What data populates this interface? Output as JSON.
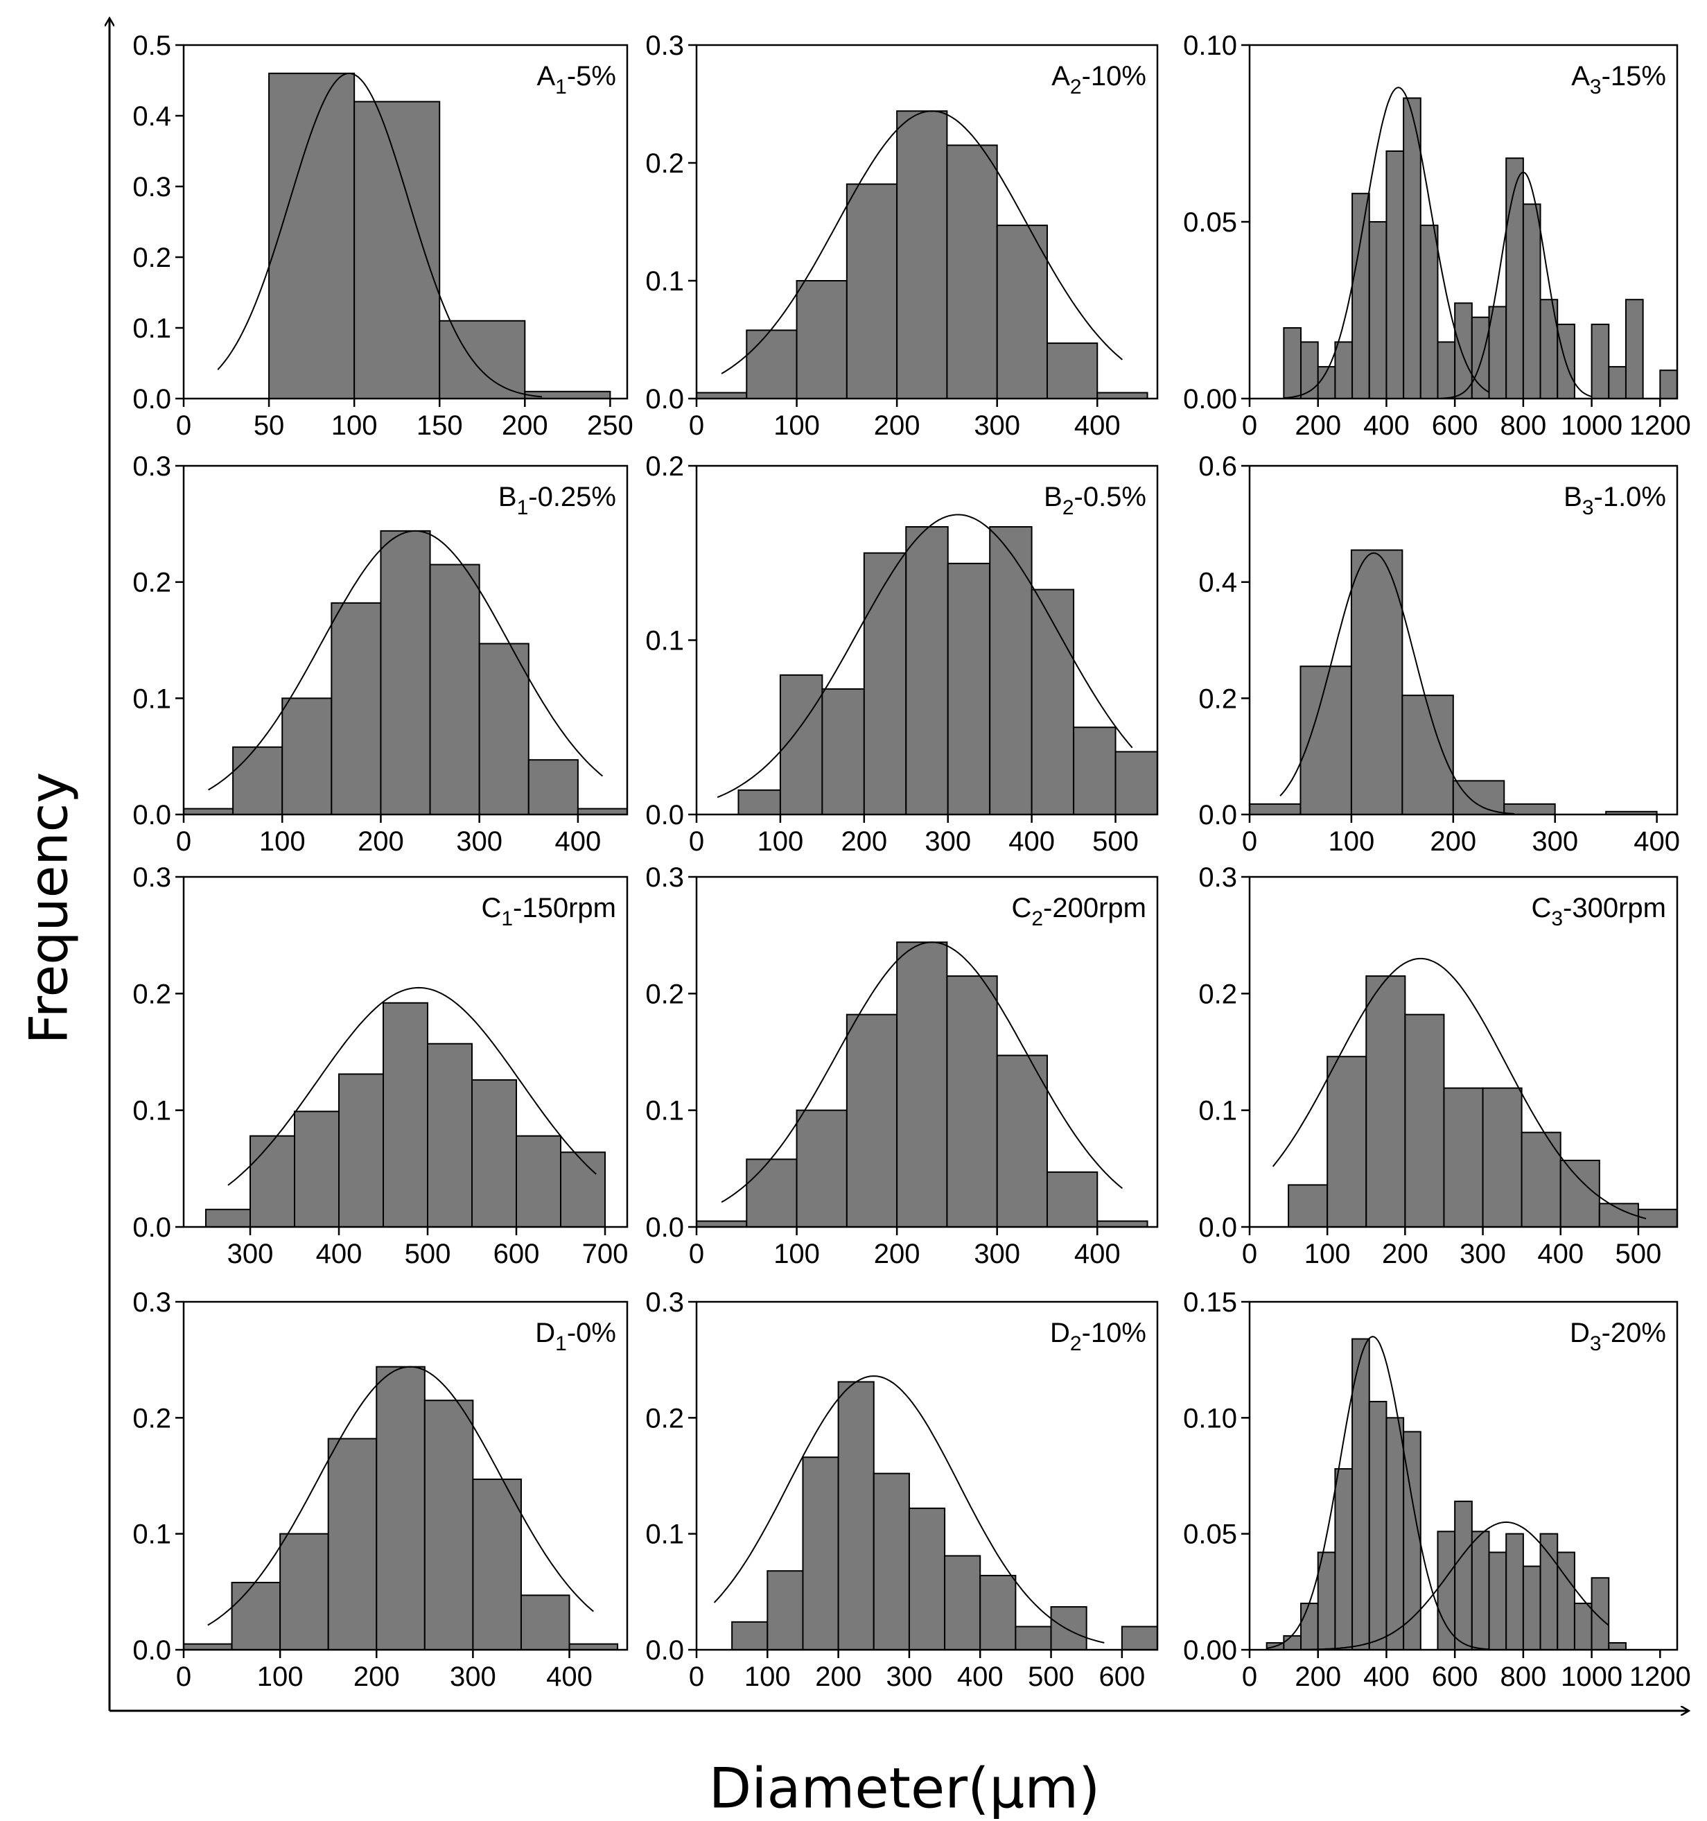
{
  "figure": {
    "ylabel": "Frequency",
    "xlabel": "Diameter(μm)"
  },
  "style": {
    "bar_fill": "#7a7a7a",
    "bar_stroke": "#000000",
    "axis_color": "#000000",
    "curve_color": "#000000"
  },
  "chart_data": [
    {
      "type": "bar",
      "panel": "A1",
      "label_main": "A",
      "label_sub": "1",
      "label_rest": "-5%",
      "xlim": [
        0,
        260
      ],
      "xticks": [
        0,
        50,
        100,
        150,
        200,
        250
      ],
      "ylim": [
        0,
        0.5
      ],
      "yticks": [
        "0.0",
        "0.1",
        "0.2",
        "0.3",
        "0.4",
        "0.5"
      ],
      "bin_edges": [
        50,
        100,
        150,
        200,
        250
      ],
      "values": [
        0.46,
        0.42,
        0.11,
        0.01
      ],
      "curves": [
        {
          "mu": 97,
          "sigma": 35,
          "amp": 0.46,
          "from": 20,
          "to": 210
        }
      ]
    },
    {
      "type": "bar",
      "panel": "A2",
      "label_main": "A",
      "label_sub": "2",
      "label_rest": "-10%",
      "xlim": [
        0,
        460
      ],
      "xticks": [
        0,
        100,
        200,
        300,
        400
      ],
      "ylim": [
        0,
        0.3
      ],
      "yticks": [
        "0.0",
        "0.1",
        "0.2",
        "0.3"
      ],
      "bin_edges": [
        0,
        50,
        100,
        150,
        200,
        250,
        300,
        350,
        400,
        450
      ],
      "values": [
        0.005,
        0.058,
        0.1,
        0.182,
        0.244,
        0.215,
        0.147,
        0.047,
        0.005
      ],
      "curves": [
        {
          "mu": 235,
          "sigma": 95,
          "amp": 0.244,
          "from": 25,
          "to": 425
        }
      ]
    },
    {
      "type": "bar",
      "panel": "A3",
      "label_main": "A",
      "label_sub": "3",
      "label_rest": "-15%",
      "xlim": [
        0,
        1250
      ],
      "xticks": [
        0,
        200,
        400,
        600,
        800,
        1000,
        1200
      ],
      "ylim": [
        0,
        0.1
      ],
      "yticks": [
        "0.00",
        "0.05",
        "0.10"
      ],
      "bin_edges": [
        100,
        150,
        200,
        250,
        300,
        350,
        400,
        450,
        500,
        550,
        600,
        650,
        700,
        750,
        800,
        850,
        900,
        950,
        1000,
        1050,
        1100,
        1150,
        1200,
        1250
      ],
      "values": [
        0.02,
        0.016,
        0.009,
        0.016,
        0.058,
        0.05,
        0.07,
        0.085,
        0.049,
        0.016,
        0.027,
        0.023,
        0.026,
        0.068,
        0.055,
        0.028,
        0.021,
        0.0,
        0.021,
        0.009,
        0.028,
        0.0,
        0.008
      ],
      "curves": [
        {
          "mu": 435,
          "sigma": 95,
          "amp": 0.088,
          "from": 100,
          "to": 700
        },
        {
          "mu": 800,
          "sigma": 65,
          "amp": 0.064,
          "from": 560,
          "to": 1000
        }
      ]
    },
    {
      "type": "bar",
      "panel": "B1",
      "label_main": "B",
      "label_sub": "1",
      "label_rest": "-0.25%",
      "xlim": [
        0,
        450
      ],
      "xticks": [
        0,
        100,
        200,
        300,
        400
      ],
      "ylim": [
        0,
        0.3
      ],
      "yticks": [
        "0.0",
        "0.1",
        "0.2",
        "0.3"
      ],
      "bin_edges": [
        0,
        50,
        100,
        150,
        200,
        250,
        300,
        350,
        400,
        450
      ],
      "values": [
        0.005,
        0.058,
        0.1,
        0.182,
        0.244,
        0.215,
        0.147,
        0.047,
        0.005
      ],
      "curves": [
        {
          "mu": 235,
          "sigma": 95,
          "amp": 0.244,
          "from": 25,
          "to": 425
        }
      ]
    },
    {
      "type": "bar",
      "panel": "B2",
      "label_main": "B",
      "label_sub": "2",
      "label_rest": "-0.5%",
      "xlim": [
        0,
        550
      ],
      "xticks": [
        0,
        100,
        200,
        300,
        400,
        500
      ],
      "ylim": [
        0,
        0.2
      ],
      "yticks": [
        "0.0",
        "0.1",
        "0.2"
      ],
      "bin_edges": [
        50,
        100,
        150,
        200,
        250,
        300,
        350,
        400,
        450,
        500,
        550
      ],
      "values": [
        0.014,
        0.08,
        0.072,
        0.15,
        0.165,
        0.144,
        0.165,
        0.129,
        0.05,
        0.036
      ],
      "curves": [
        {
          "mu": 312,
          "sigma": 120,
          "amp": 0.172,
          "from": 25,
          "to": 520
        }
      ]
    },
    {
      "type": "bar",
      "panel": "B3",
      "label_main": "B",
      "label_sub": "3",
      "label_rest": "-1.0%",
      "xlim": [
        0,
        420
      ],
      "xticks": [
        0,
        100,
        200,
        300,
        400
      ],
      "ylim": [
        0,
        0.6
      ],
      "yticks": [
        "0.0",
        "0.2",
        "0.4",
        "0.6"
      ],
      "bin_edges": [
        0,
        50,
        100,
        150,
        200,
        250,
        300,
        350,
        400
      ],
      "values": [
        0.018,
        0.255,
        0.455,
        0.205,
        0.058,
        0.018,
        0.0,
        0.005
      ],
      "curves": [
        {
          "mu": 122,
          "sigma": 40,
          "amp": 0.45,
          "from": 30,
          "to": 260
        }
      ]
    },
    {
      "type": "bar",
      "panel": "C1",
      "label_main": "C",
      "label_sub": "1",
      "label_rest": "-150rpm",
      "xlim": [
        225,
        725
      ],
      "xticks": [
        300,
        400,
        500,
        600,
        700
      ],
      "ylim": [
        0,
        0.3
      ],
      "yticks": [
        "0.0",
        "0.1",
        "0.2",
        "0.3"
      ],
      "bin_edges": [
        250,
        300,
        350,
        400,
        450,
        500,
        550,
        600,
        650,
        700
      ],
      "values": [
        0.015,
        0.078,
        0.099,
        0.131,
        0.192,
        0.157,
        0.126,
        0.078,
        0.064
      ],
      "curves": [
        {
          "mu": 490,
          "sigma": 115,
          "amp": 0.205,
          "from": 275,
          "to": 690
        }
      ]
    },
    {
      "type": "bar",
      "panel": "C2",
      "label_main": "C",
      "label_sub": "2",
      "label_rest": "-200rpm",
      "xlim": [
        0,
        460
      ],
      "xticks": [
        0,
        100,
        200,
        300,
        400
      ],
      "ylim": [
        0,
        0.3
      ],
      "yticks": [
        "0.0",
        "0.1",
        "0.2",
        "0.3"
      ],
      "bin_edges": [
        0,
        50,
        100,
        150,
        200,
        250,
        300,
        350,
        400,
        450
      ],
      "values": [
        0.005,
        0.058,
        0.1,
        0.182,
        0.244,
        0.215,
        0.147,
        0.047,
        0.005
      ],
      "curves": [
        {
          "mu": 235,
          "sigma": 95,
          "amp": 0.244,
          "from": 25,
          "to": 425
        }
      ]
    },
    {
      "type": "bar",
      "panel": "C3",
      "label_main": "C",
      "label_sub": "3",
      "label_rest": "-300rpm",
      "xlim": [
        0,
        550
      ],
      "xticks": [
        0,
        100,
        200,
        300,
        400,
        500
      ],
      "ylim": [
        0,
        0.3
      ],
      "yticks": [
        "0.0",
        "0.1",
        "0.2",
        "0.3"
      ],
      "bin_edges": [
        50,
        100,
        150,
        200,
        250,
        300,
        350,
        400,
        450,
        500,
        550
      ],
      "values": [
        0.036,
        0.146,
        0.215,
        0.182,
        0.119,
        0.119,
        0.081,
        0.057,
        0.02,
        0.015
      ],
      "curves": [
        {
          "mu": 220,
          "sigma": 110,
          "amp": 0.23,
          "from": 30,
          "to": 510
        }
      ]
    },
    {
      "type": "bar",
      "panel": "D1",
      "label_main": "D",
      "label_sub": "1",
      "label_rest": "-0%",
      "xlim": [
        0,
        460
      ],
      "xticks": [
        0,
        100,
        200,
        300,
        400
      ],
      "ylim": [
        0,
        0.3
      ],
      "yticks": [
        "0.0",
        "0.1",
        "0.2",
        "0.3"
      ],
      "bin_edges": [
        0,
        50,
        100,
        150,
        200,
        250,
        300,
        350,
        400,
        450
      ],
      "values": [
        0.005,
        0.058,
        0.1,
        0.182,
        0.244,
        0.215,
        0.147,
        0.047,
        0.005
      ],
      "curves": [
        {
          "mu": 235,
          "sigma": 95,
          "amp": 0.244,
          "from": 25,
          "to": 425
        }
      ]
    },
    {
      "type": "bar",
      "panel": "D2",
      "label_main": "D",
      "label_sub": "2",
      "label_rest": "-10%",
      "xlim": [
        0,
        650
      ],
      "xticks": [
        0,
        100,
        200,
        300,
        400,
        500,
        600
      ],
      "ylim": [
        0,
        0.3
      ],
      "yticks": [
        "0.0",
        "0.1",
        "0.2",
        "0.3"
      ],
      "bin_edges": [
        50,
        100,
        150,
        200,
        250,
        300,
        350,
        400,
        450,
        500,
        550,
        600,
        650
      ],
      "values": [
        0.024,
        0.068,
        0.166,
        0.231,
        0.152,
        0.122,
        0.081,
        0.064,
        0.02,
        0.037,
        0.0,
        0.02
      ],
      "curves": [
        {
          "mu": 250,
          "sigma": 120,
          "amp": 0.236,
          "from": 25,
          "to": 575
        }
      ]
    },
    {
      "type": "bar",
      "panel": "D3",
      "label_main": "D",
      "label_sub": "3",
      "label_rest": "-20%",
      "xlim": [
        0,
        1250
      ],
      "xticks": [
        0,
        200,
        400,
        600,
        800,
        1000,
        1200
      ],
      "ylim": [
        0,
        0.15
      ],
      "yticks": [
        "0.00",
        "0.05",
        "0.10",
        "0.15"
      ],
      "bin_edges": [
        50,
        100,
        150,
        200,
        250,
        300,
        350,
        400,
        450,
        500,
        550,
        600,
        650,
        700,
        750,
        800,
        850,
        900,
        950,
        1000,
        1050,
        1100
      ],
      "values": [
        0.003,
        0.006,
        0.02,
        0.042,
        0.078,
        0.134,
        0.107,
        0.1,
        0.094,
        0.0,
        0.051,
        0.064,
        0.051,
        0.042,
        0.05,
        0.036,
        0.05,
        0.042,
        0.02,
        0.031,
        0.003
      ],
      "curves": [
        {
          "mu": 360,
          "sigma": 95,
          "amp": 0.135,
          "from": 50,
          "to": 700
        },
        {
          "mu": 750,
          "sigma": 165,
          "amp": 0.055,
          "from": 150,
          "to": 1050
        }
      ]
    }
  ]
}
